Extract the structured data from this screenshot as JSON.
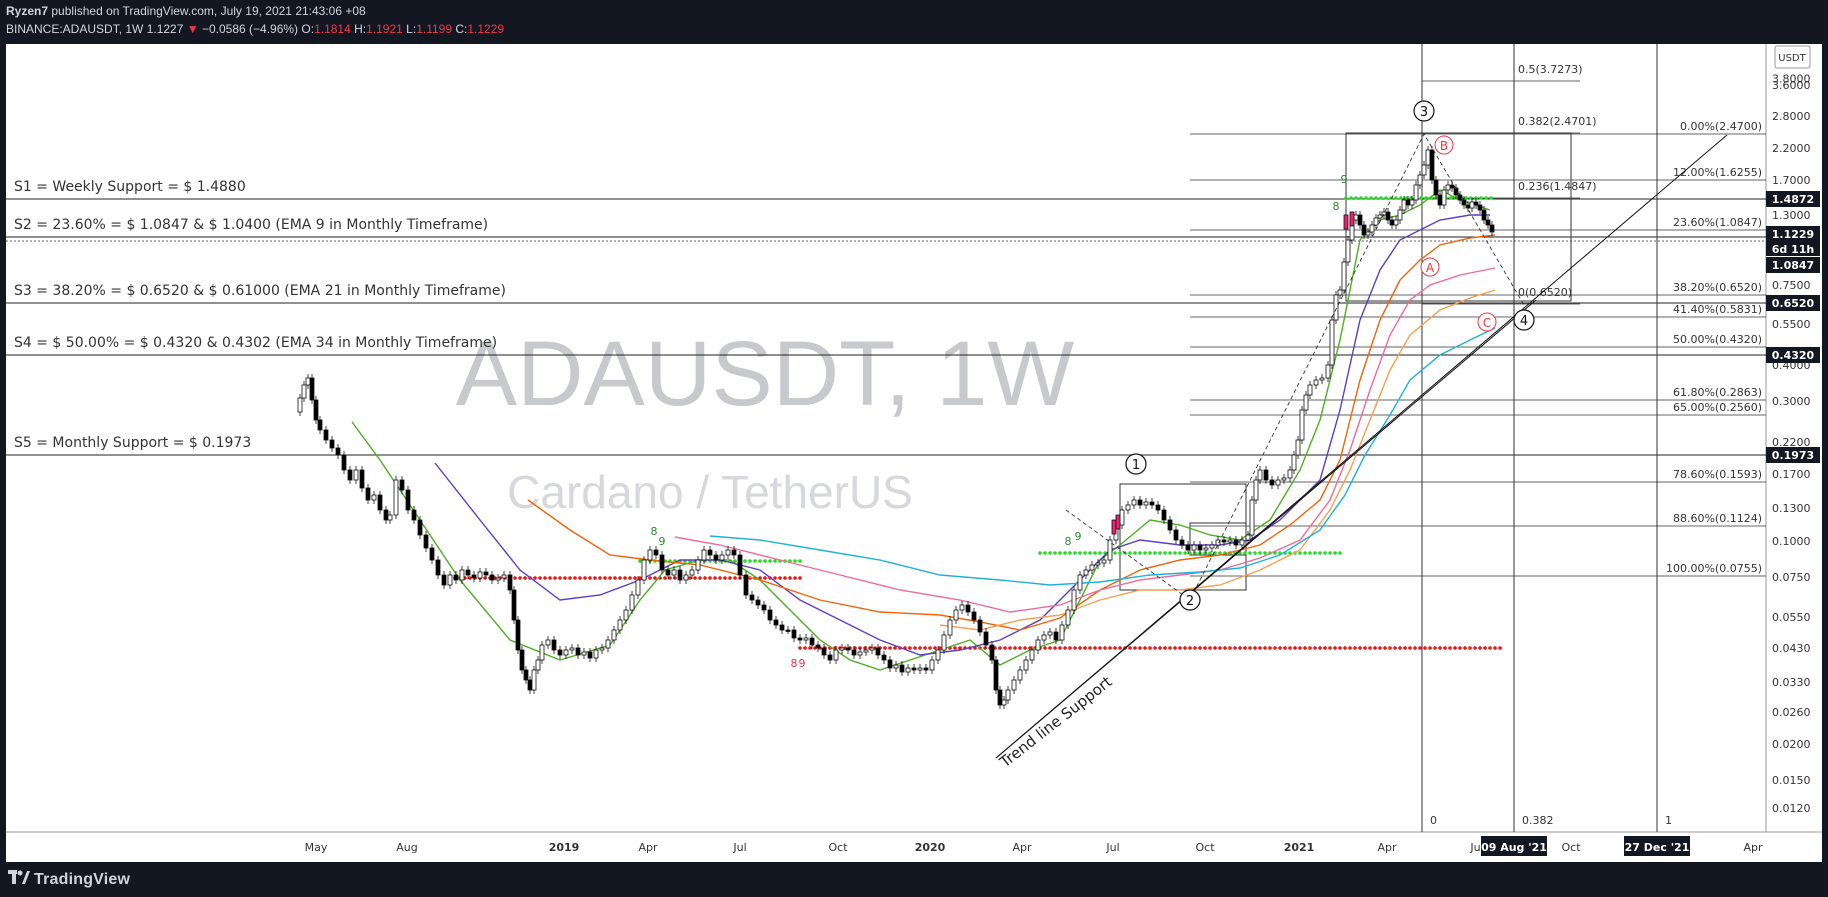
{
  "header": {
    "user": "Ryzen7",
    "published": "published on TradingView.com, July 19, 2021 21:43:06 +08",
    "symbol": "BINANCE:ADAUSDT, 1W",
    "price": "1.1227",
    "arrow": "▼",
    "change": "−0.0586 (−4.96%)",
    "o_label": "O:",
    "o_val": "1.1814",
    "h_label": "H:",
    "h_val": "1.1921",
    "l_label": "L:",
    "l_val": "1.1199",
    "c_label": "C:",
    "c_val": "1.1229"
  },
  "footer": {
    "brand": "TradingView"
  },
  "colors": {
    "bg": "#ffffff",
    "up": "#ffffff",
    "down": "#000000",
    "ema_green": "#4caf23",
    "ema_purple": "#5b3fc4",
    "ema_orange": "#f0640a",
    "ema_pink": "#f06a9a",
    "ema_lightorange": "#f5a050",
    "ema_cyan": "#1fb2d6",
    "dot_green": "#22dd22",
    "dot_red": "#ee1111",
    "text": "#333333"
  },
  "watermark": {
    "symbol": "ADAUSDT, 1W",
    "name": "Cardano / TetherUS"
  },
  "chart_data": {
    "type": "candlestick",
    "title": "BINANCE:ADAUSDT, 1W",
    "y_scale": "log",
    "y_axis_unit": "USDT",
    "x_ticks": [
      "May",
      "Aug",
      "2019",
      "Apr",
      "Jul",
      "Oct",
      "2020",
      "Apr",
      "Jul",
      "Oct",
      "2021",
      "Apr",
      "Jul",
      "Oct",
      "Apr"
    ],
    "x_highlight_labels": [
      "09 Aug '21",
      "27 Dec '21"
    ],
    "y_ticks": [
      "3.8000",
      "3.6000",
      "2.8000",
      "2.2000",
      "1.7000",
      "1.3000",
      "1.0000",
      "0.7500",
      "0.5500",
      "0.4000",
      "0.3000",
      "0.2200",
      "0.1700",
      "0.1300",
      "0.1000",
      "0.0750",
      "0.0550",
      "0.0430",
      "0.0330",
      "0.0260",
      "0.0200",
      "0.0150",
      "0.0120"
    ],
    "price_labels": [
      "1.4872",
      "1.1229",
      "6d 11h",
      "1.0847",
      "0.6520",
      "0.4320",
      "0.1973"
    ],
    "support_levels": [
      {
        "label": "S1 = Weekly Support = $ 1.4880",
        "value": 1.488
      },
      {
        "label": "S2 = 23.60% = $ 1.0847 & $ 1.0400 (EMA 9 in Monthly Timeframe)",
        "value": 1.0847
      },
      {
        "label": "S3 = 38.20% = $ 0.6520 & $ 0.61000 (EMA 21 in Monthly Timeframe)",
        "value": 0.652
      },
      {
        "label": "S4 = $ 50.00% = $ 0.4320 & 0.4302 (EMA 34 in Monthly Timeframe)",
        "value": 0.432
      },
      {
        "label": "S5 = Monthly Support = $ 0.1973",
        "value": 0.1973
      }
    ],
    "fib_levels": [
      {
        "label": "0.00%(2.4700)",
        "value": 2.47
      },
      {
        "label": "12.00%(1.6255)",
        "value": 1.6255
      },
      {
        "label": "23.60%(1.0847)",
        "value": 1.0847
      },
      {
        "label": "38.20%(0.6520)",
        "value": 0.652
      },
      {
        "label": "41.40%(0.5831)",
        "value": 0.5831
      },
      {
        "label": "50.00%(0.4320)",
        "value": 0.432
      },
      {
        "label": "61.80%(0.2863)",
        "value": 0.2863
      },
      {
        "label": "65.00%(0.2560)",
        "value": 0.256
      },
      {
        "label": "78.60%(0.1593)",
        "value": 0.1593
      },
      {
        "label": "88.60%(0.1124)",
        "value": 0.1124
      },
      {
        "label": "100.00%(0.0755)",
        "value": 0.0755
      }
    ],
    "ext_levels": [
      {
        "label": "0.5(3.7273)",
        "value": 3.7273
      },
      {
        "label": "0.382(2.4701)",
        "value": 2.4701
      },
      {
        "label": "0.236(1.4847)",
        "value": 1.4847
      },
      {
        "label": "0(0.6520)",
        "value": 0.652
      }
    ],
    "time_fib_labels": [
      "0",
      "0.382",
      "1"
    ],
    "wave_labels": [
      "1",
      "2",
      "3",
      "4"
    ],
    "corrective_labels": [
      "A",
      "B",
      "C"
    ],
    "td_labels": [
      "8",
      "9",
      "8",
      "9",
      "8",
      "9",
      "8",
      "9"
    ],
    "annotation": "Trend line Support",
    "series_note": "weekly OHLC candles approximated from chart"
  }
}
